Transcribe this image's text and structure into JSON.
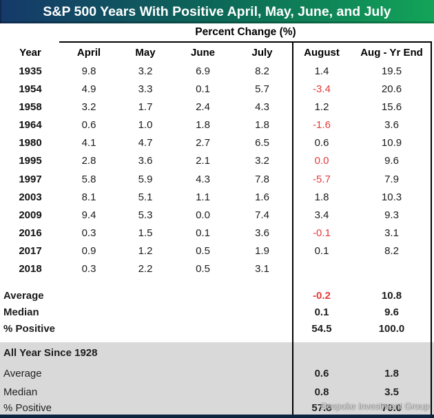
{
  "title": "S&P 500 Years With Positive April, May, June, and July",
  "subheader": "Percent Change (%)",
  "columns": [
    "Year",
    "April",
    "May",
    "June",
    "July",
    "August",
    "Aug - Yr End"
  ],
  "colors": {
    "title_gradient_left": "#15396a",
    "title_gradient_mid": "#0c6a57",
    "title_gradient_right": "#13a458",
    "negative_value": "#e33a3c",
    "gray_band": "#d9d9d9",
    "bottom_bar": "#0d2340",
    "box_border": "#000000"
  },
  "chart_data": {
    "type": "table",
    "title": "S&P 500 Years With Positive April, May, June, and July",
    "group_header": "Percent Change (%)",
    "columns": [
      "Year",
      "April",
      "May",
      "June",
      "July",
      "August",
      "Aug - Yr End"
    ],
    "rows": [
      {
        "year": "1935",
        "cells": [
          "9.8",
          "3.2",
          "6.9",
          "8.2",
          "1.4",
          "19.5"
        ],
        "red": [
          false,
          false,
          false,
          false,
          false,
          false
        ]
      },
      {
        "year": "1954",
        "cells": [
          "4.9",
          "3.3",
          "0.1",
          "5.7",
          "-3.4",
          "20.6"
        ],
        "red": [
          false,
          false,
          false,
          false,
          true,
          false
        ]
      },
      {
        "year": "1958",
        "cells": [
          "3.2",
          "1.7",
          "2.4",
          "4.3",
          "1.2",
          "15.6"
        ],
        "red": [
          false,
          false,
          false,
          false,
          false,
          false
        ]
      },
      {
        "year": "1964",
        "cells": [
          "0.6",
          "1.0",
          "1.8",
          "1.8",
          "-1.6",
          "3.6"
        ],
        "red": [
          false,
          false,
          false,
          false,
          true,
          false
        ]
      },
      {
        "year": "1980",
        "cells": [
          "4.1",
          "4.7",
          "2.7",
          "6.5",
          "0.6",
          "10.9"
        ],
        "red": [
          false,
          false,
          false,
          false,
          false,
          false
        ]
      },
      {
        "year": "1995",
        "cells": [
          "2.8",
          "3.6",
          "2.1",
          "3.2",
          "0.0",
          "9.6"
        ],
        "red": [
          false,
          false,
          false,
          false,
          true,
          false
        ]
      },
      {
        "year": "1997",
        "cells": [
          "5.8",
          "5.9",
          "4.3",
          "7.8",
          "-5.7",
          "7.9"
        ],
        "red": [
          false,
          false,
          false,
          false,
          true,
          false
        ]
      },
      {
        "year": "2003",
        "cells": [
          "8.1",
          "5.1",
          "1.1",
          "1.6",
          "1.8",
          "10.3"
        ],
        "red": [
          false,
          false,
          false,
          false,
          false,
          false
        ]
      },
      {
        "year": "2009",
        "cells": [
          "9.4",
          "5.3",
          "0.0",
          "7.4",
          "3.4",
          "9.3"
        ],
        "red": [
          false,
          false,
          false,
          false,
          false,
          false
        ]
      },
      {
        "year": "2016",
        "cells": [
          "0.3",
          "1.5",
          "0.1",
          "3.6",
          "-0.1",
          "3.1"
        ],
        "red": [
          false,
          false,
          false,
          false,
          true,
          false
        ]
      },
      {
        "year": "2017",
        "cells": [
          "0.9",
          "1.2",
          "0.5",
          "1.9",
          "0.1",
          "8.2"
        ],
        "red": [
          false,
          false,
          false,
          false,
          false,
          false
        ]
      },
      {
        "year": "2018",
        "cells": [
          "0.3",
          "2.2",
          "0.5",
          "3.1",
          "",
          ""
        ],
        "red": [
          false,
          false,
          false,
          false,
          false,
          false
        ]
      }
    ],
    "summary": [
      {
        "label": "Average",
        "august": "-0.2",
        "aug_yr_end": "10.8",
        "august_red": true
      },
      {
        "label": "Median",
        "august": "0.1",
        "aug_yr_end": "9.6",
        "august_red": false
      },
      {
        "label": "% Positive",
        "august": "54.5",
        "aug_yr_end": "100.0",
        "august_red": false
      }
    ],
    "all_years_section": {
      "header": "All Year Since 1928",
      "rows": [
        {
          "label": "Average",
          "august": "0.6",
          "aug_yr_end": "1.8"
        },
        {
          "label": "Median",
          "august": "0.8",
          "aug_yr_end": "3.5"
        },
        {
          "label": "% Positive",
          "august": "57.8",
          "aug_yr_end": "70.0"
        }
      ]
    }
  },
  "watermark": "Bespoke Investment Group"
}
